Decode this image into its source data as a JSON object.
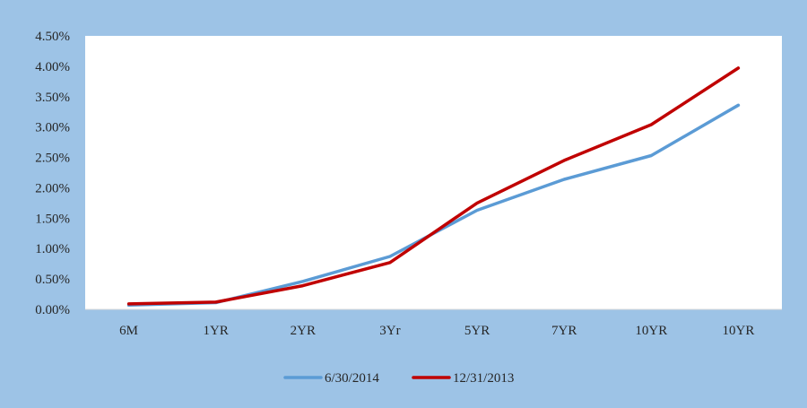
{
  "chart_data": {
    "type": "line",
    "title": "",
    "xlabel": "",
    "ylabel": "",
    "categories": [
      "6M",
      "1YR",
      "2YR",
      "3Yr",
      "5YR",
      "7YR",
      "10YR",
      "10YR"
    ],
    "y_tick_labels": [
      "0.00%",
      "0.50%",
      "1.00%",
      "1.50%",
      "2.00%",
      "2.50%",
      "3.00%",
      "3.50%",
      "4.00%",
      "4.50%"
    ],
    "ylim": [
      0,
      4.5
    ],
    "y_step": 0.5,
    "grid": false,
    "legend_position": "bottom",
    "series": [
      {
        "name": "6/30/2014",
        "color": "#5b9bd5",
        "values": [
          0.07,
          0.11,
          0.46,
          0.87,
          1.63,
          2.14,
          2.53,
          3.36
        ]
      },
      {
        "name": "12/31/2013",
        "color": "#c00000",
        "values": [
          0.09,
          0.12,
          0.39,
          0.77,
          1.75,
          2.45,
          3.04,
          3.97
        ]
      }
    ],
    "colors": {
      "page_background": "#9dc3e6",
      "plot_background": "#ffffff"
    }
  }
}
